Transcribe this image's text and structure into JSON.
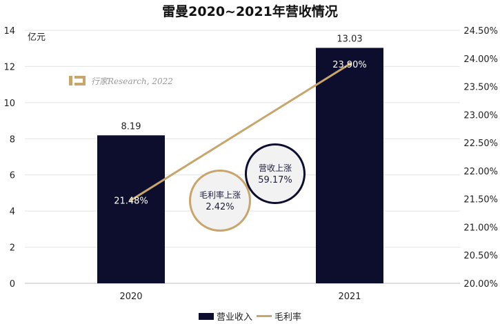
{
  "title": "雷曼2020~2021年营收情况",
  "unit_label": "亿元",
  "watermark": "行家Research, 2022",
  "legend": {
    "bar_label": "营业收入",
    "line_label": "毛利率"
  },
  "callouts": {
    "margin": {
      "label": "毛利率上涨",
      "value": "2.42%"
    },
    "revenue": {
      "label": "营收上涨",
      "value": "59.17%"
    }
  },
  "colors": {
    "bar": "#0d0d2d",
    "line": "#c8a56b",
    "grid": "#e3e3e3",
    "bubble_fill": "#f2f2f2"
  },
  "chart_data": {
    "type": "bar",
    "categories": [
      "2020",
      "2021"
    ],
    "series": [
      {
        "name": "营业收入",
        "type": "bar",
        "axis": "left",
        "values": [
          8.19,
          13.03
        ],
        "labels": [
          "8.19",
          "13.03"
        ]
      },
      {
        "name": "毛利率",
        "type": "line",
        "axis": "right",
        "values": [
          21.48,
          23.9
        ],
        "labels": [
          "21.48%",
          "23.90%"
        ]
      }
    ],
    "y_left": {
      "lim": [
        0,
        14
      ],
      "ticks": [
        "0",
        "2",
        "4",
        "6",
        "8",
        "10",
        "12",
        "14"
      ]
    },
    "y_right": {
      "lim": [
        20.0,
        24.5
      ],
      "ticks": [
        "20.00%",
        "20.50%",
        "21.00%",
        "21.50%",
        "22.00%",
        "22.50%",
        "23.00%",
        "23.50%",
        "24.00%",
        "24.50%"
      ]
    },
    "grid": "horizontal",
    "legend_position": "bottom"
  }
}
